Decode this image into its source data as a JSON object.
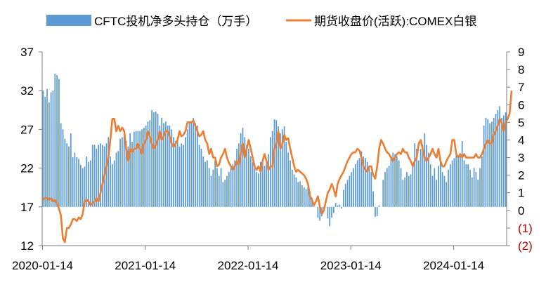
{
  "chart_data": {
    "type": "bar+line",
    "title": "",
    "legend": [
      {
        "label": "CFTC投机净多头持仓（万手）",
        "kind": "bar",
        "color": "#5B9BD5"
      },
      {
        "label": "期货收盘价(活跃):COMEX白银",
        "kind": "line",
        "color": "#ED7D31"
      }
    ],
    "legend_position": "top",
    "left_axis": {
      "ylim": [
        12,
        37
      ],
      "ticks": [
        "12",
        "17",
        "22",
        "27",
        "32",
        "37"
      ],
      "baseline": 17
    },
    "right_axis": {
      "ylim": [
        -2,
        9
      ],
      "ticks": [
        "9",
        "8",
        "7",
        "6",
        "5",
        "4",
        "3",
        "2",
        "1",
        "0",
        "(1)",
        "(2)"
      ],
      "negative_tick_color": "#C00000"
    },
    "x_axis": {
      "ticks": [
        "2020-01-14",
        "2021-01-14",
        "2022-01-14",
        "2023-01-14",
        "2024-01-14"
      ],
      "tick_weeks": [
        0,
        52,
        104,
        156,
        208
      ]
    },
    "grid": false,
    "series": [
      {
        "name": "CFTC投机净多头持仓（万手）",
        "axis": "left",
        "kind": "bar",
        "values": [
          32.0,
          31.2,
          32.2,
          30.5,
          31.8,
          32.0,
          34.2,
          34.0,
          33.5,
          27.8,
          27.0,
          25.8,
          25.2,
          24.8,
          26.5,
          23.4,
          24.0,
          23.4,
          23.2,
          22.4,
          22.0,
          22.2,
          23.5,
          22.8,
          23.0,
          25.0,
          25.0,
          24.5,
          25.0,
          25.2,
          25.0,
          24.8,
          25.2,
          26.0,
          23.5,
          22.5,
          23.0,
          24.0,
          24.2,
          25.8,
          26.0,
          26.5,
          25.5,
          24.8,
          26.5,
          25.4,
          26.7,
          26.8,
          26.8,
          26.8,
          27.0,
          27.2,
          27.5,
          28.0,
          28.2,
          29.5,
          29.2,
          29.3,
          29.0,
          27.5,
          28.5,
          27.8,
          28.0,
          27.5,
          27.5,
          27.0,
          26.0,
          25.5,
          26.0,
          24.8,
          25.2,
          25.0,
          26.0,
          27.0,
          27.8,
          28.0,
          28.5,
          27.8,
          27.5,
          25.0,
          24.5,
          23.5,
          22.8,
          23.0,
          22.0,
          21.0,
          21.8,
          23.0,
          22.0,
          21.0,
          22.0,
          20.2,
          20.5,
          21.0,
          21.5,
          22.0,
          22.5,
          23.0,
          24.5,
          25.2,
          26.5,
          27.2,
          26.0,
          25.0,
          24.5,
          23.5,
          22.8,
          22.2,
          21.5,
          21.3,
          22.8,
          22.8,
          22.3,
          22.5,
          23.8,
          26.0,
          26.8,
          28.3,
          28.2,
          27.4,
          26.5,
          27.0,
          27.4,
          25.4,
          24.0,
          23.0,
          21.8,
          21.2,
          20.8,
          20.2,
          20.3,
          19.8,
          19.5,
          19.3,
          19.6,
          19.0,
          18.2,
          17.5,
          17.0,
          15.6,
          15.2,
          15.8,
          16.4,
          17.0,
          15.5,
          14.5,
          15.6,
          16.2,
          17.5,
          17.2,
          17.3,
          16.8,
          19.2,
          20.0,
          20.5,
          21.0,
          21.5,
          22.0,
          22.5,
          23.0,
          23.3,
          24.2,
          23.5,
          23.3,
          22.8,
          22.0,
          21.5,
          19.0,
          15.7,
          15.8,
          17.2,
          17.0,
          20.5,
          21.5,
          22.0,
          22.3,
          23.6,
          24.0,
          23.8,
          23.5,
          23.0,
          22.0,
          20.5,
          20.8,
          21.5,
          21.0,
          21.2,
          22.5,
          25.2,
          24.5,
          23.0,
          24.5,
          25.0,
          26.5,
          25.0,
          24.0,
          22.5,
          21.0,
          22.0,
          20.5,
          22.3,
          23.2,
          21.5,
          21.0,
          20.2,
          21.8,
          22.5,
          23.0,
          23.3,
          23.8,
          23.3,
          23.5,
          25.5,
          23.0,
          22.5,
          22.5,
          21.8,
          20.8,
          22.0,
          21.5,
          20.5,
          22.0,
          23.5,
          27.5,
          28.5,
          28.3,
          27.8,
          28.0,
          28.5,
          29.0,
          29.5,
          30.0,
          28.5,
          28.8,
          29.2
        ]
      },
      {
        "name": "期货收盘价(活跃):COMEX白银",
        "axis": "right",
        "kind": "line",
        "values": [
          0.6,
          0.7,
          0.7,
          0.6,
          0.7,
          0.5,
          0.6,
          0.4,
          0.1,
          -0.3,
          -1.6,
          -1.8,
          -1.0,
          -1.0,
          -0.8,
          -0.5,
          -0.5,
          -0.6,
          -0.4,
          -0.5,
          -0.2,
          0.5,
          0.6,
          0.5,
          0.3,
          0.4,
          0.5,
          0.7,
          0.5,
          1.0,
          1.5,
          2.0,
          2.5,
          3.0,
          4.0,
          5.2,
          5.2,
          4.5,
          4.8,
          4.5,
          4.7,
          4.5,
          3.5,
          2.8,
          3.5,
          3.3,
          3.5,
          3.5,
          3.8,
          3.5,
          3.2,
          3.8,
          4.0,
          4.5,
          4.2,
          3.8,
          3.5,
          3.7,
          4.0,
          4.5,
          4.0,
          4.2,
          4.5,
          4.5,
          4.2,
          3.8,
          3.6,
          3.8,
          4.0,
          4.5,
          4.2,
          4.3,
          4.5,
          5.0,
          5.0,
          5.0,
          5.1,
          4.8,
          4.5,
          4.2,
          4.3,
          4.5,
          4.0,
          3.8,
          3.2,
          3.5,
          3.0,
          3.0,
          2.5,
          2.6,
          3.0,
          3.2,
          3.5,
          3.0,
          2.7,
          2.5,
          2.3,
          2.5,
          2.8,
          2.6,
          3.2,
          3.8,
          3.0,
          3.5,
          4.0,
          3.5,
          3.0,
          2.5,
          2.3,
          2.5,
          2.2,
          2.8,
          3.2,
          2.8,
          2.3,
          2.5,
          2.5,
          3.5,
          3.8,
          4.5,
          3.5,
          3.8,
          4.3,
          4.0,
          4.1,
          3.5,
          3.0,
          2.5,
          2.2,
          2.3,
          2.2,
          2.1,
          2.0,
          1.8,
          1.5,
          0.8,
          0.6,
          0.3,
          0.5,
          0.8,
          0.2,
          -0.2,
          0.0,
          0.5,
          1.0,
          1.2,
          1.5,
          1.2,
          0.8,
          1.5,
          1.8,
          2.0,
          2.2,
          2.5,
          2.8,
          3.0,
          3.2,
          3.3,
          3.3,
          3.5,
          3.4,
          3.0,
          2.5,
          2.3,
          2.2,
          2.5,
          2.5,
          2.0,
          1.8,
          2.5,
          3.5,
          4.0,
          3.8,
          3.5,
          3.3,
          3.2,
          3.0,
          2.8,
          3.0,
          3.2,
          3.3,
          3.2,
          3.5,
          3.3,
          3.3,
          3.0,
          2.8,
          2.5,
          2.8,
          3.0,
          3.8,
          4.0,
          3.5,
          3.0,
          2.8,
          3.0,
          3.2,
          3.5,
          3.2,
          3.0,
          3.5,
          2.8,
          2.5,
          2.5,
          2.8,
          3.0,
          3.2,
          4.0,
          4.0,
          3.2,
          3.0,
          3.2,
          3.0,
          3.2,
          3.0,
          3.0,
          3.0,
          3.0,
          3.0,
          3.2,
          3.0,
          3.0,
          3.2,
          3.5,
          3.8,
          4.0,
          3.8,
          3.8,
          4.3,
          4.5,
          4.8,
          5.2,
          5.0,
          4.5,
          5.0,
          5.2,
          5.5,
          6.8
        ]
      }
    ]
  }
}
